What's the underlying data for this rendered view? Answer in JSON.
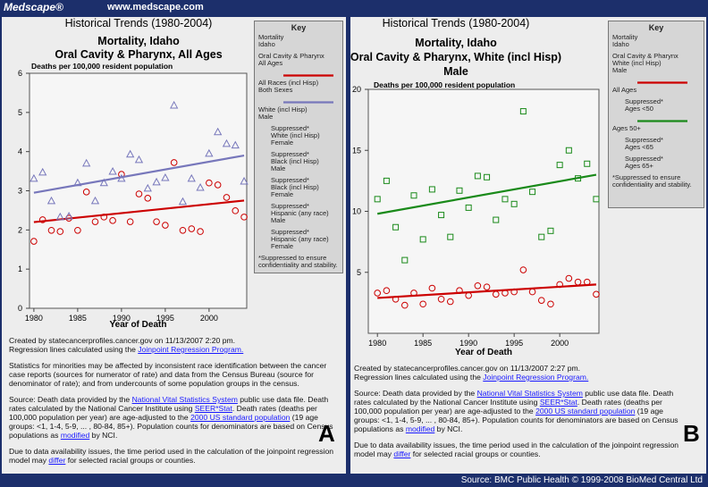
{
  "header": {
    "brand": "Medscape®",
    "url": "www.medscape.com"
  },
  "footer": "Source: BMC Public Health © 1999-2008 BioMed Central Ltd",
  "chart_data": [
    {
      "type": "scatter",
      "panel_label": "A",
      "titles": [
        "Historical Trends (1980-2004)",
        "Mortality, Idaho",
        "Oral Cavity & Pharynx, All Ages"
      ],
      "y_label": "Deaths per 100,000 resident population",
      "x_label": "Year of Death",
      "xlim": [
        1979.5,
        2004.3
      ],
      "ylim": [
        0,
        6
      ],
      "xticks": [
        1980,
        1985,
        1990,
        1995,
        2000
      ],
      "yticks": [
        0,
        1,
        2,
        3,
        4,
        5,
        6
      ],
      "x": [
        1980,
        1981,
        1982,
        1983,
        1984,
        1985,
        1986,
        1987,
        1988,
        1989,
        1990,
        1991,
        1992,
        1993,
        1994,
        1995,
        1996,
        1997,
        1998,
        1999,
        2000,
        2001,
        2002,
        2003,
        2004
      ],
      "trend_x": [
        1980,
        2004
      ],
      "series": [
        {
          "name": "All Races (incl Hisp)\nBoth Sexes",
          "color": "#cc0000",
          "marker": "circle",
          "values": [
            1.71,
            2.26,
            1.99,
            1.96,
            2.3,
            1.99,
            2.97,
            2.21,
            2.33,
            2.24,
            3.42,
            2.21,
            2.92,
            2.81,
            2.21,
            2.12,
            3.72,
            1.99,
            2.03,
            1.96,
            3.2,
            3.15,
            2.83,
            2.49,
            2.33
          ],
          "trend": [
            2.2,
            2.75
          ]
        },
        {
          "name": "White (incl Hisp)\nMale",
          "color": "#7777bb",
          "marker": "triangle",
          "values": [
            3.31,
            3.47,
            2.74,
            2.33,
            2.35,
            3.2,
            3.7,
            2.74,
            3.2,
            3.49,
            3.31,
            3.93,
            3.79,
            3.06,
            3.22,
            3.33,
            5.18,
            2.72,
            3.31,
            3.08,
            3.95,
            4.5,
            4.2,
            4.16,
            3.24
          ],
          "trend": [
            2.95,
            3.9
          ]
        }
      ],
      "key": {
        "title": "Key",
        "header": [
          "Mortality\nIdaho",
          "Oral Cavity & Pharynx\nAll Ages"
        ],
        "after": [
          "Suppressed*\nWhite (incl Hisp)\nFemale",
          "Suppressed*\nBlack (incl Hisp)\nMale",
          "Suppressed*\nBlack (incl Hisp)\nFemale",
          "Suppressed*\nHispanic (any race)\nMale",
          "Suppressed*\nHispanic (any race)\nFemale"
        ],
        "note": "*Suppressed to ensure confidentiality and stability."
      },
      "notes": [
        [
          "Created by statecancerprofiles.cancer.gov on 11/13/2007 2:20 pm.\nRegression lines calculated using the ",
          {
            "link": "Joinpoint Regression Program."
          }
        ],
        [
          "Statistics for minorities may be affected by inconsistent race identification between the cancer case reports (sources for numerator of rate) and data from the Census Bureau (source for denominator of rate); and from undercounts of some population groups in the census."
        ],
        [
          "Source: Death data provided by the ",
          {
            "link": "National Vital Statistics System"
          },
          " public use data file. Death rates calculated by the National Cancer Institute using ",
          {
            "link": "SEER*Stat"
          },
          ". Death rates (deaths per 100,000 population per year) are age-adjusted to the ",
          {
            "link": "2000 US standard population"
          },
          " (19 age groups: <1, 1-4, 5-9, ... , 80-84, 85+). Population counts for denominators are based on Census populations as ",
          {
            "link": "modified"
          },
          " by NCI."
        ],
        [
          "Due to data availability issues, the time period used in the calculation of the joinpoint regression model may ",
          {
            "link": "differ"
          },
          " for selected racial groups or counties."
        ]
      ]
    },
    {
      "type": "scatter",
      "panel_label": "B",
      "titles": [
        "Historical Trends (1980-2004)",
        "Mortality, Idaho",
        "Oral Cavity & Pharynx, White (incl Hisp)",
        "Male"
      ],
      "y_label": "Deaths per 100,000 resident population",
      "x_label": "Year of Death",
      "xlim": [
        1979,
        2004.3
      ],
      "ylim": [
        0,
        20
      ],
      "xticks": [
        1980,
        1985,
        1990,
        1995,
        2000
      ],
      "yticks": [
        5,
        10,
        15,
        20
      ],
      "x": [
        1980,
        1981,
        1982,
        1983,
        1984,
        1985,
        1986,
        1987,
        1988,
        1989,
        1990,
        1991,
        1992,
        1993,
        1994,
        1995,
        1996,
        1997,
        1998,
        1999,
        2000,
        2001,
        2002,
        2003,
        2004
      ],
      "trend_x": [
        1980,
        2004
      ],
      "series": [
        {
          "name": "All Ages",
          "color": "#cc0000",
          "marker": "circle",
          "values": [
            3.3,
            3.5,
            2.8,
            2.3,
            3.3,
            2.4,
            3.7,
            2.8,
            2.6,
            3.5,
            3.1,
            3.9,
            3.8,
            3.2,
            3.3,
            3.4,
            5.2,
            3.4,
            2.7,
            2.4,
            4.0,
            4.5,
            4.2,
            4.2,
            3.2
          ],
          "trend": [
            2.9,
            4.0
          ]
        },
        {
          "name": "Ages 50+",
          "color": "#1a8a1a",
          "marker": "square",
          "key_before": [
            "Suppressed*\nAges <50"
          ],
          "values": [
            11,
            12.5,
            8.7,
            6.0,
            11.3,
            7.7,
            11.8,
            9.7,
            7.9,
            11.7,
            10.3,
            12.9,
            12.8,
            9.3,
            11,
            10.6,
            18.2,
            11.6,
            7.9,
            8.4,
            13.8,
            15,
            12.7,
            13.9,
            11
          ],
          "trend": [
            9.8,
            13.0
          ]
        }
      ],
      "key": {
        "title": "Key",
        "header": [
          "Mortality\nIdaho",
          "Oral Cavity & Pharynx\nWhite (incl Hisp)\nMale"
        ],
        "after": [
          "Suppressed*\nAges <65",
          "Suppressed*\nAges 65+"
        ],
        "note": "*Suppressed to ensure confidentiality and stability."
      },
      "notes": [
        [
          "Created by statecancerprofiles.cancer.gov on 11/13/2007 2:27 pm.\nRegression lines calculated using the ",
          {
            "link": "Joinpoint Regression Program."
          }
        ],
        [
          "Source: Death data provided by the ",
          {
            "link": "National Vital Statistics System"
          },
          " public use data file. Death rates calculated by the National Cancer Institute using ",
          {
            "link": "SEER*Stat"
          },
          ". Death rates (deaths per 100,000 population per year) are age-adjusted to the ",
          {
            "link": "2000 US standard population"
          },
          " (19 age groups: <1, 1-4, 5-9, ... , 80-84, 85+). Population counts for denominators are based on Census populations as ",
          {
            "link": "modified"
          },
          " by NCI."
        ],
        [
          "Due to data availability issues, the time period used in the calculation of the joinpoint regression model may ",
          {
            "link": "differ"
          },
          " for selected racial groups or counties."
        ]
      ]
    }
  ]
}
